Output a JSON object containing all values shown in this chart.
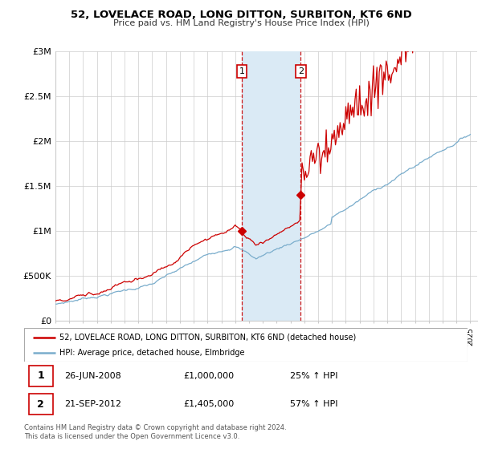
{
  "title": "52, LOVELACE ROAD, LONG DITTON, SURBITON, KT6 6ND",
  "subtitle": "Price paid vs. HM Land Registry's House Price Index (HPI)",
  "ylim": [
    0,
    3000000
  ],
  "yticks": [
    0,
    500000,
    1000000,
    1500000,
    2000000,
    2500000,
    3000000
  ],
  "ytick_labels": [
    "£0",
    "£500K",
    "£1M",
    "£1.5M",
    "£2M",
    "£2.5M",
    "£3M"
  ],
  "price_paid_color": "#cc0000",
  "hpi_color": "#7aadcc",
  "shade_color": "#daeaf5",
  "sale1_year": 2008.49,
  "sale1_price": 1000000,
  "sale2_year": 2012.73,
  "sale2_price": 1405000,
  "vline_color": "#cc0000",
  "legend_label1": "52, LOVELACE ROAD, LONG DITTON, SURBITON, KT6 6ND (detached house)",
  "legend_label2": "HPI: Average price, detached house, Elmbridge",
  "table_row1": [
    "1",
    "26-JUN-2008",
    "£1,000,000",
    "25% ↑ HPI"
  ],
  "table_row2": [
    "2",
    "21-SEP-2012",
    "£1,405,000",
    "57% ↑ HPI"
  ],
  "footer": "Contains HM Land Registry data © Crown copyright and database right 2024.\nThis data is licensed under the Open Government Licence v3.0.",
  "grid_color": "#cccccc",
  "xstart": 1995,
  "xend": 2025
}
